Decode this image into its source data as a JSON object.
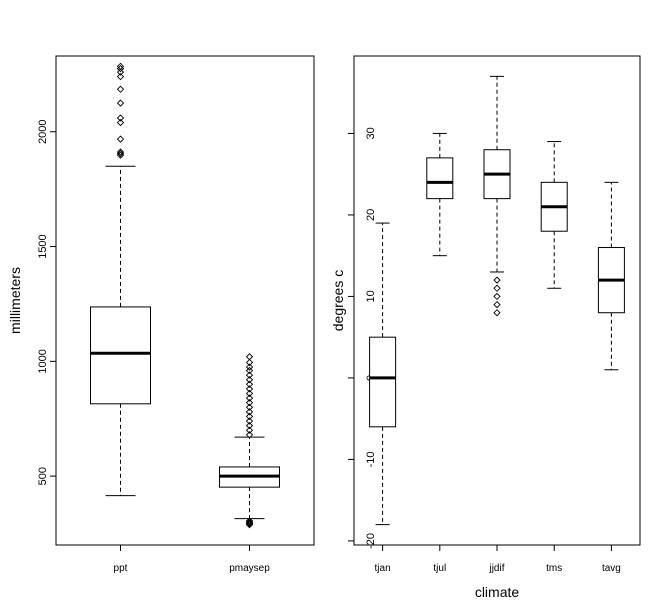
{
  "chart_data": [
    {
      "type": "boxplot",
      "title": "",
      "xlabel": "",
      "ylabel": "millimeters",
      "ylim": [
        200,
        2330
      ],
      "yticks": [
        500,
        1000,
        1500,
        2000
      ],
      "ytick_labels": [
        "500",
        "1000",
        "1500",
        "2000"
      ],
      "categories": [
        "ppt",
        "pmaysep"
      ],
      "boxes": [
        {
          "name": "ppt",
          "whisker_low": 415,
          "q1": 815,
          "median": 1035,
          "q3": 1237,
          "whisker_high": 1850,
          "outliers": [
            1898,
            1905,
            1912,
            1968,
            2040,
            2060,
            2125,
            2185,
            2240,
            2260,
            2275,
            2285
          ]
        },
        {
          "name": "pmaysep",
          "whisker_low": 315,
          "q1": 452,
          "median": 500,
          "q3": 540,
          "whisker_high": 670,
          "outliers": [
            288,
            292,
            296,
            300,
            305,
            680,
            700,
            720,
            740,
            760,
            780,
            800,
            820,
            840,
            860,
            880,
            900,
            920,
            940,
            960,
            975,
            995,
            1020
          ]
        }
      ]
    },
    {
      "type": "boxplot",
      "title": "",
      "xlabel": "climate",
      "ylabel": "degrees c",
      "ylim": [
        -20.5,
        39.5
      ],
      "yticks": [
        -20,
        -10,
        0,
        10,
        20,
        30
      ],
      "ytick_labels": [
        "-20",
        "-10",
        "0",
        "10",
        "20",
        "30"
      ],
      "categories": [
        "tjan",
        "tjul",
        "jjdif",
        "tms",
        "tavg"
      ],
      "boxes": [
        {
          "name": "tjan",
          "whisker_low": -18,
          "q1": -6,
          "median": 0,
          "q3": 5,
          "whisker_high": 19,
          "outliers": []
        },
        {
          "name": "tjul",
          "whisker_low": 15,
          "q1": 22,
          "median": 24,
          "q3": 27,
          "whisker_high": 30,
          "outliers": []
        },
        {
          "name": "jjdif",
          "whisker_low": 13,
          "q1": 22,
          "median": 25,
          "q3": 28,
          "whisker_high": 37,
          "outliers": [
            8,
            9,
            10,
            11,
            12
          ]
        },
        {
          "name": "tms",
          "whisker_low": 11,
          "q1": 18,
          "median": 21,
          "q3": 24,
          "whisker_high": 29,
          "outliers": []
        },
        {
          "name": "tavg",
          "whisker_low": 1,
          "q1": 8,
          "median": 12,
          "q3": 16,
          "whisker_high": 24,
          "outliers": []
        }
      ]
    }
  ]
}
